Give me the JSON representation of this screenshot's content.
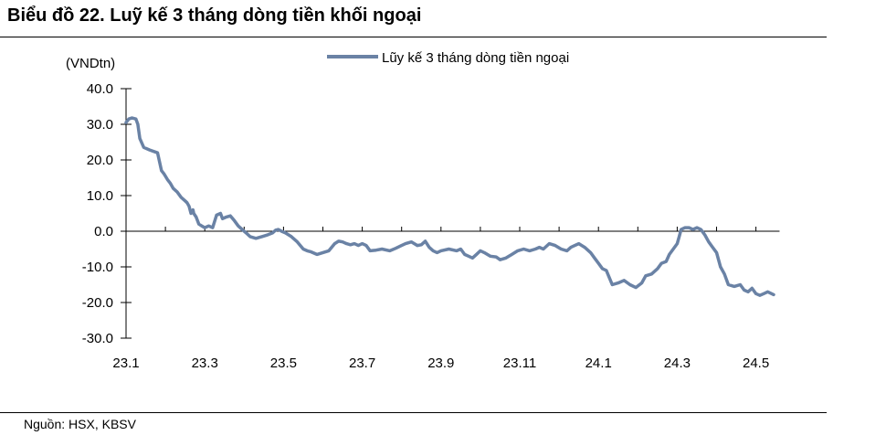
{
  "header": {
    "title": "Biểu đồ 22. Luỹ kế 3 tháng dòng tiền khối ngoại"
  },
  "footer": {
    "source": "Nguồn: HSX, KBSV"
  },
  "colors": {
    "series": "#6A82A5"
  },
  "chart_data": {
    "type": "line",
    "title": "",
    "ylabel": "(VNDtn)",
    "xlabel": "",
    "ylim": [
      -30,
      40
    ],
    "yticks": [
      40,
      30,
      20,
      10,
      0,
      -10,
      -20,
      -30
    ],
    "ytick_labels": [
      "40.0",
      "30.0",
      "20.0",
      "10.0",
      "0.0",
      "-10.0",
      "-20.0",
      "-30.0"
    ],
    "xtick_labels": [
      "23.1",
      "23.3",
      "23.5",
      "23.7",
      "23.9",
      "23.11",
      "24.1",
      "24.3",
      "24.5"
    ],
    "xtick_positions": [
      0,
      2,
      4,
      6,
      8,
      10,
      12,
      14,
      16
    ],
    "xlim": [
      0,
      16.6
    ],
    "legend": "top-center",
    "grid": false,
    "series": [
      {
        "name": "Lũy kế 3 tháng dòng tiền ngoại",
        "x": [
          0.0,
          0.07,
          0.15,
          0.25,
          0.3,
          0.35,
          0.45,
          0.6,
          0.8,
          0.9,
          0.97,
          1.05,
          1.12,
          1.2,
          1.3,
          1.4,
          1.5,
          1.55,
          1.6,
          1.65,
          1.7,
          1.72,
          1.78,
          1.85,
          1.92,
          2.0,
          2.1,
          2.2,
          2.3,
          2.4,
          2.45,
          2.55,
          2.65,
          2.75,
          2.85,
          2.95,
          3.05,
          3.15,
          3.3,
          3.45,
          3.6,
          3.72,
          3.8,
          3.87,
          3.95,
          4.05,
          4.2,
          4.35,
          4.5,
          4.6,
          4.7,
          4.85,
          5.0,
          5.15,
          5.3,
          5.4,
          5.5,
          5.6,
          5.7,
          5.8,
          5.9,
          6.0,
          6.1,
          6.2,
          6.35,
          6.5,
          6.7,
          6.85,
          7.0,
          7.1,
          7.25,
          7.4,
          7.5,
          7.6,
          7.7,
          7.8,
          7.9,
          8.0,
          8.2,
          8.4,
          8.5,
          8.6,
          8.7,
          8.8,
          8.9,
          9.0,
          9.1,
          9.25,
          9.4,
          9.5,
          9.65,
          9.8,
          9.95,
          10.1,
          10.25,
          10.4,
          10.5,
          10.6,
          10.75,
          10.9,
          11.05,
          11.2,
          11.3,
          11.4,
          11.5,
          11.65,
          11.8,
          11.9,
          12.0,
          12.1,
          12.2,
          12.35,
          12.5,
          12.65,
          12.8,
          12.95,
          13.1,
          13.2,
          13.35,
          13.5,
          13.6,
          13.72,
          13.8,
          13.9,
          14.0,
          14.05,
          14.1,
          14.2,
          14.3,
          14.4,
          14.5,
          14.6,
          14.7,
          14.8,
          14.9,
          15.0,
          15.1,
          15.2,
          15.3,
          15.45,
          15.6,
          15.7,
          15.8,
          15.9,
          16.0,
          16.1,
          16.2,
          16.3,
          16.45
        ],
        "values": [
          30.5,
          31.5,
          31.8,
          31.5,
          30.0,
          26.0,
          23.5,
          22.8,
          22.0,
          17.0,
          16.0,
          14.5,
          13.5,
          12.0,
          11.0,
          9.5,
          8.5,
          8.0,
          7.0,
          5.0,
          6.0,
          5.0,
          4.0,
          2.0,
          1.5,
          1.0,
          1.5,
          1.0,
          4.5,
          5.0,
          3.5,
          4.0,
          4.3,
          3.0,
          1.5,
          0.5,
          -0.5,
          -1.5,
          -2.0,
          -1.5,
          -1.0,
          -0.5,
          0.3,
          0.5,
          0.0,
          -0.5,
          -1.5,
          -3.0,
          -5.0,
          -5.5,
          -5.8,
          -6.5,
          -6.0,
          -5.5,
          -3.5,
          -2.8,
          -3.0,
          -3.5,
          -3.8,
          -3.5,
          -4.0,
          -3.5,
          -4.0,
          -5.5,
          -5.3,
          -5.0,
          -5.5,
          -4.8,
          -4.0,
          -3.5,
          -3.0,
          -4.0,
          -3.8,
          -2.8,
          -4.5,
          -5.5,
          -6.0,
          -5.5,
          -5.0,
          -5.5,
          -5.0,
          -6.5,
          -7.0,
          -7.5,
          -6.5,
          -5.5,
          -6.0,
          -7.0,
          -7.2,
          -8.0,
          -7.5,
          -6.5,
          -5.5,
          -5.0,
          -5.5,
          -5.0,
          -4.5,
          -5.0,
          -3.5,
          -4.0,
          -5.0,
          -5.5,
          -4.5,
          -4.0,
          -3.5,
          -4.5,
          -6.0,
          -7.5,
          -9.0,
          -10.5,
          -11.0,
          -15.0,
          -14.5,
          -13.8,
          -15.0,
          -15.8,
          -14.5,
          -12.5,
          -12.0,
          -10.5,
          -9.0,
          -8.5,
          -6.5,
          -5.0,
          -3.5,
          -1.5,
          0.5,
          1.0,
          1.0,
          0.5,
          1.0,
          0.5,
          -1.0,
          -3.0,
          -4.5,
          -6.0,
          -10.0,
          -12.0,
          -15.0,
          -15.5,
          -15.0,
          -16.5,
          -17.0,
          -16.0,
          -17.5,
          -18.0,
          -17.5,
          -17.0,
          -17.8
        ]
      }
    ]
  }
}
